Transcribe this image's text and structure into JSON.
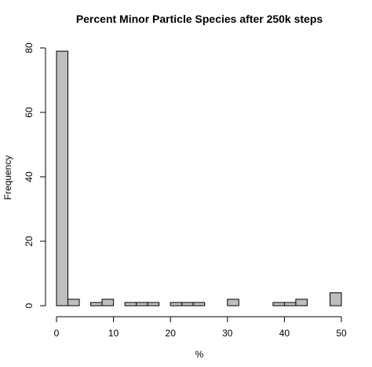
{
  "chart_data": {
    "type": "bar",
    "title": "Percent Minor Particle Species after 250k steps",
    "xlabel": "%",
    "ylabel": "Frequency",
    "x_ticks": [
      0,
      10,
      20,
      30,
      40,
      50
    ],
    "y_ticks": [
      0,
      20,
      40,
      60,
      80
    ],
    "xlim": [
      0,
      50
    ],
    "ylim": [
      0,
      80
    ],
    "bin_width": 2,
    "bins": [
      {
        "start": 0,
        "end": 2,
        "count": 79
      },
      {
        "start": 2,
        "end": 4,
        "count": 2
      },
      {
        "start": 4,
        "end": 6,
        "count": 0
      },
      {
        "start": 6,
        "end": 8,
        "count": 1
      },
      {
        "start": 8,
        "end": 10,
        "count": 2
      },
      {
        "start": 10,
        "end": 12,
        "count": 0
      },
      {
        "start": 12,
        "end": 14,
        "count": 1
      },
      {
        "start": 14,
        "end": 16,
        "count": 1
      },
      {
        "start": 16,
        "end": 18,
        "count": 1
      },
      {
        "start": 18,
        "end": 20,
        "count": 0
      },
      {
        "start": 20,
        "end": 22,
        "count": 1
      },
      {
        "start": 22,
        "end": 24,
        "count": 1
      },
      {
        "start": 24,
        "end": 26,
        "count": 1
      },
      {
        "start": 26,
        "end": 28,
        "count": 0
      },
      {
        "start": 28,
        "end": 30,
        "count": 0
      },
      {
        "start": 30,
        "end": 32,
        "count": 2
      },
      {
        "start": 32,
        "end": 34,
        "count": 0
      },
      {
        "start": 34,
        "end": 36,
        "count": 0
      },
      {
        "start": 36,
        "end": 38,
        "count": 0
      },
      {
        "start": 38,
        "end": 40,
        "count": 1
      },
      {
        "start": 40,
        "end": 42,
        "count": 1
      },
      {
        "start": 42,
        "end": 44,
        "count": 2
      },
      {
        "start": 44,
        "end": 46,
        "count": 0
      },
      {
        "start": 46,
        "end": 48,
        "count": 0
      },
      {
        "start": 48,
        "end": 50,
        "count": 4
      }
    ],
    "bar_fill": "#bebebe",
    "bar_stroke": "#000000",
    "grid": false,
    "legend": "none"
  }
}
